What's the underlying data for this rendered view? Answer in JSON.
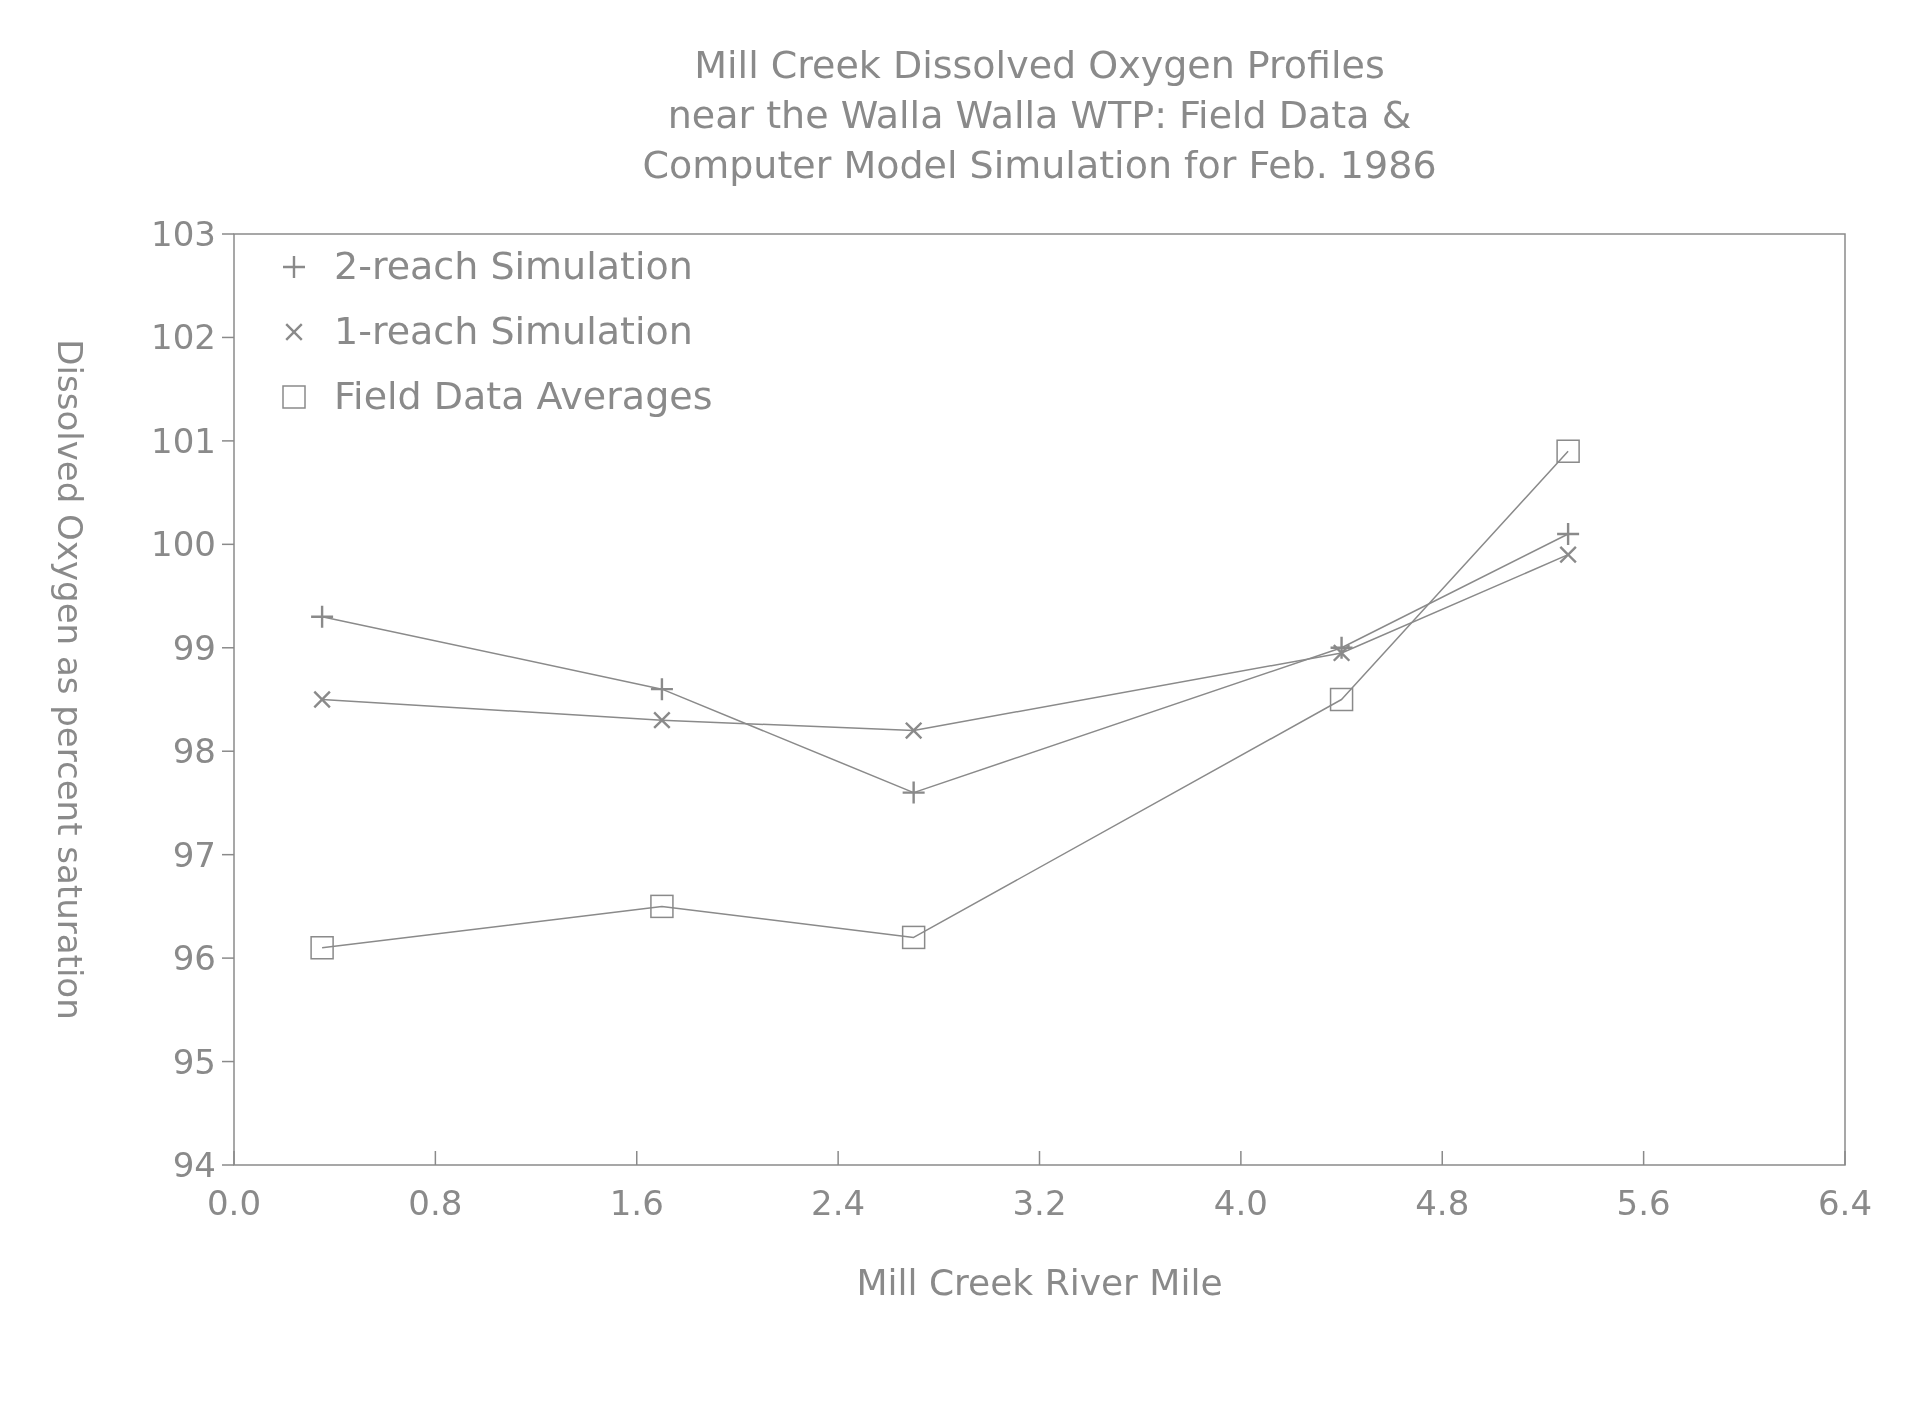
{
  "chart_data": {
    "type": "line",
    "title": "Mill Creek Dissolved Oxygen Profiles\nnear the Walla Walla WTP: Field Data &\nComputer Model Simulation for Feb. 1986",
    "xlabel": "Mill Creek River Mile",
    "ylabel": "Dissolved Oxygen as percent saturation",
    "x": [
      0.35,
      1.7,
      2.7,
      4.4,
      5.3
    ],
    "series": [
      {
        "name": "2-reach Simulation",
        "color": "#8a8a8a",
        "marker": "cross",
        "values": [
          99.3,
          98.6,
          97.6,
          99.0,
          100.1
        ]
      },
      {
        "name": "1-reach Simulation",
        "color": "#8a8a8a",
        "marker": "cross",
        "values": [
          98.5,
          98.3,
          98.2,
          98.95,
          99.9
        ]
      },
      {
        "name": "Field Data Averages",
        "color": "#8a8a8a",
        "marker": "square",
        "values": [
          96.1,
          96.5,
          96.2,
          98.5,
          100.9
        ]
      }
    ],
    "xlim": [
      0,
      6.4
    ],
    "ylim": [
      94,
      103
    ],
    "xticks": [
      {
        "value": 0,
        "label": "0.0"
      },
      0.8,
      1.6,
      2.4,
      3.2,
      {
        "value": 4,
        "label": "4.0"
      },
      4.8,
      5.6,
      6.4
    ],
    "yticks": [
      94,
      95,
      96,
      97,
      98,
      99,
      100,
      101,
      102,
      103
    ],
    "line_style": "solid",
    "grid": false,
    "legend": "top left"
  }
}
